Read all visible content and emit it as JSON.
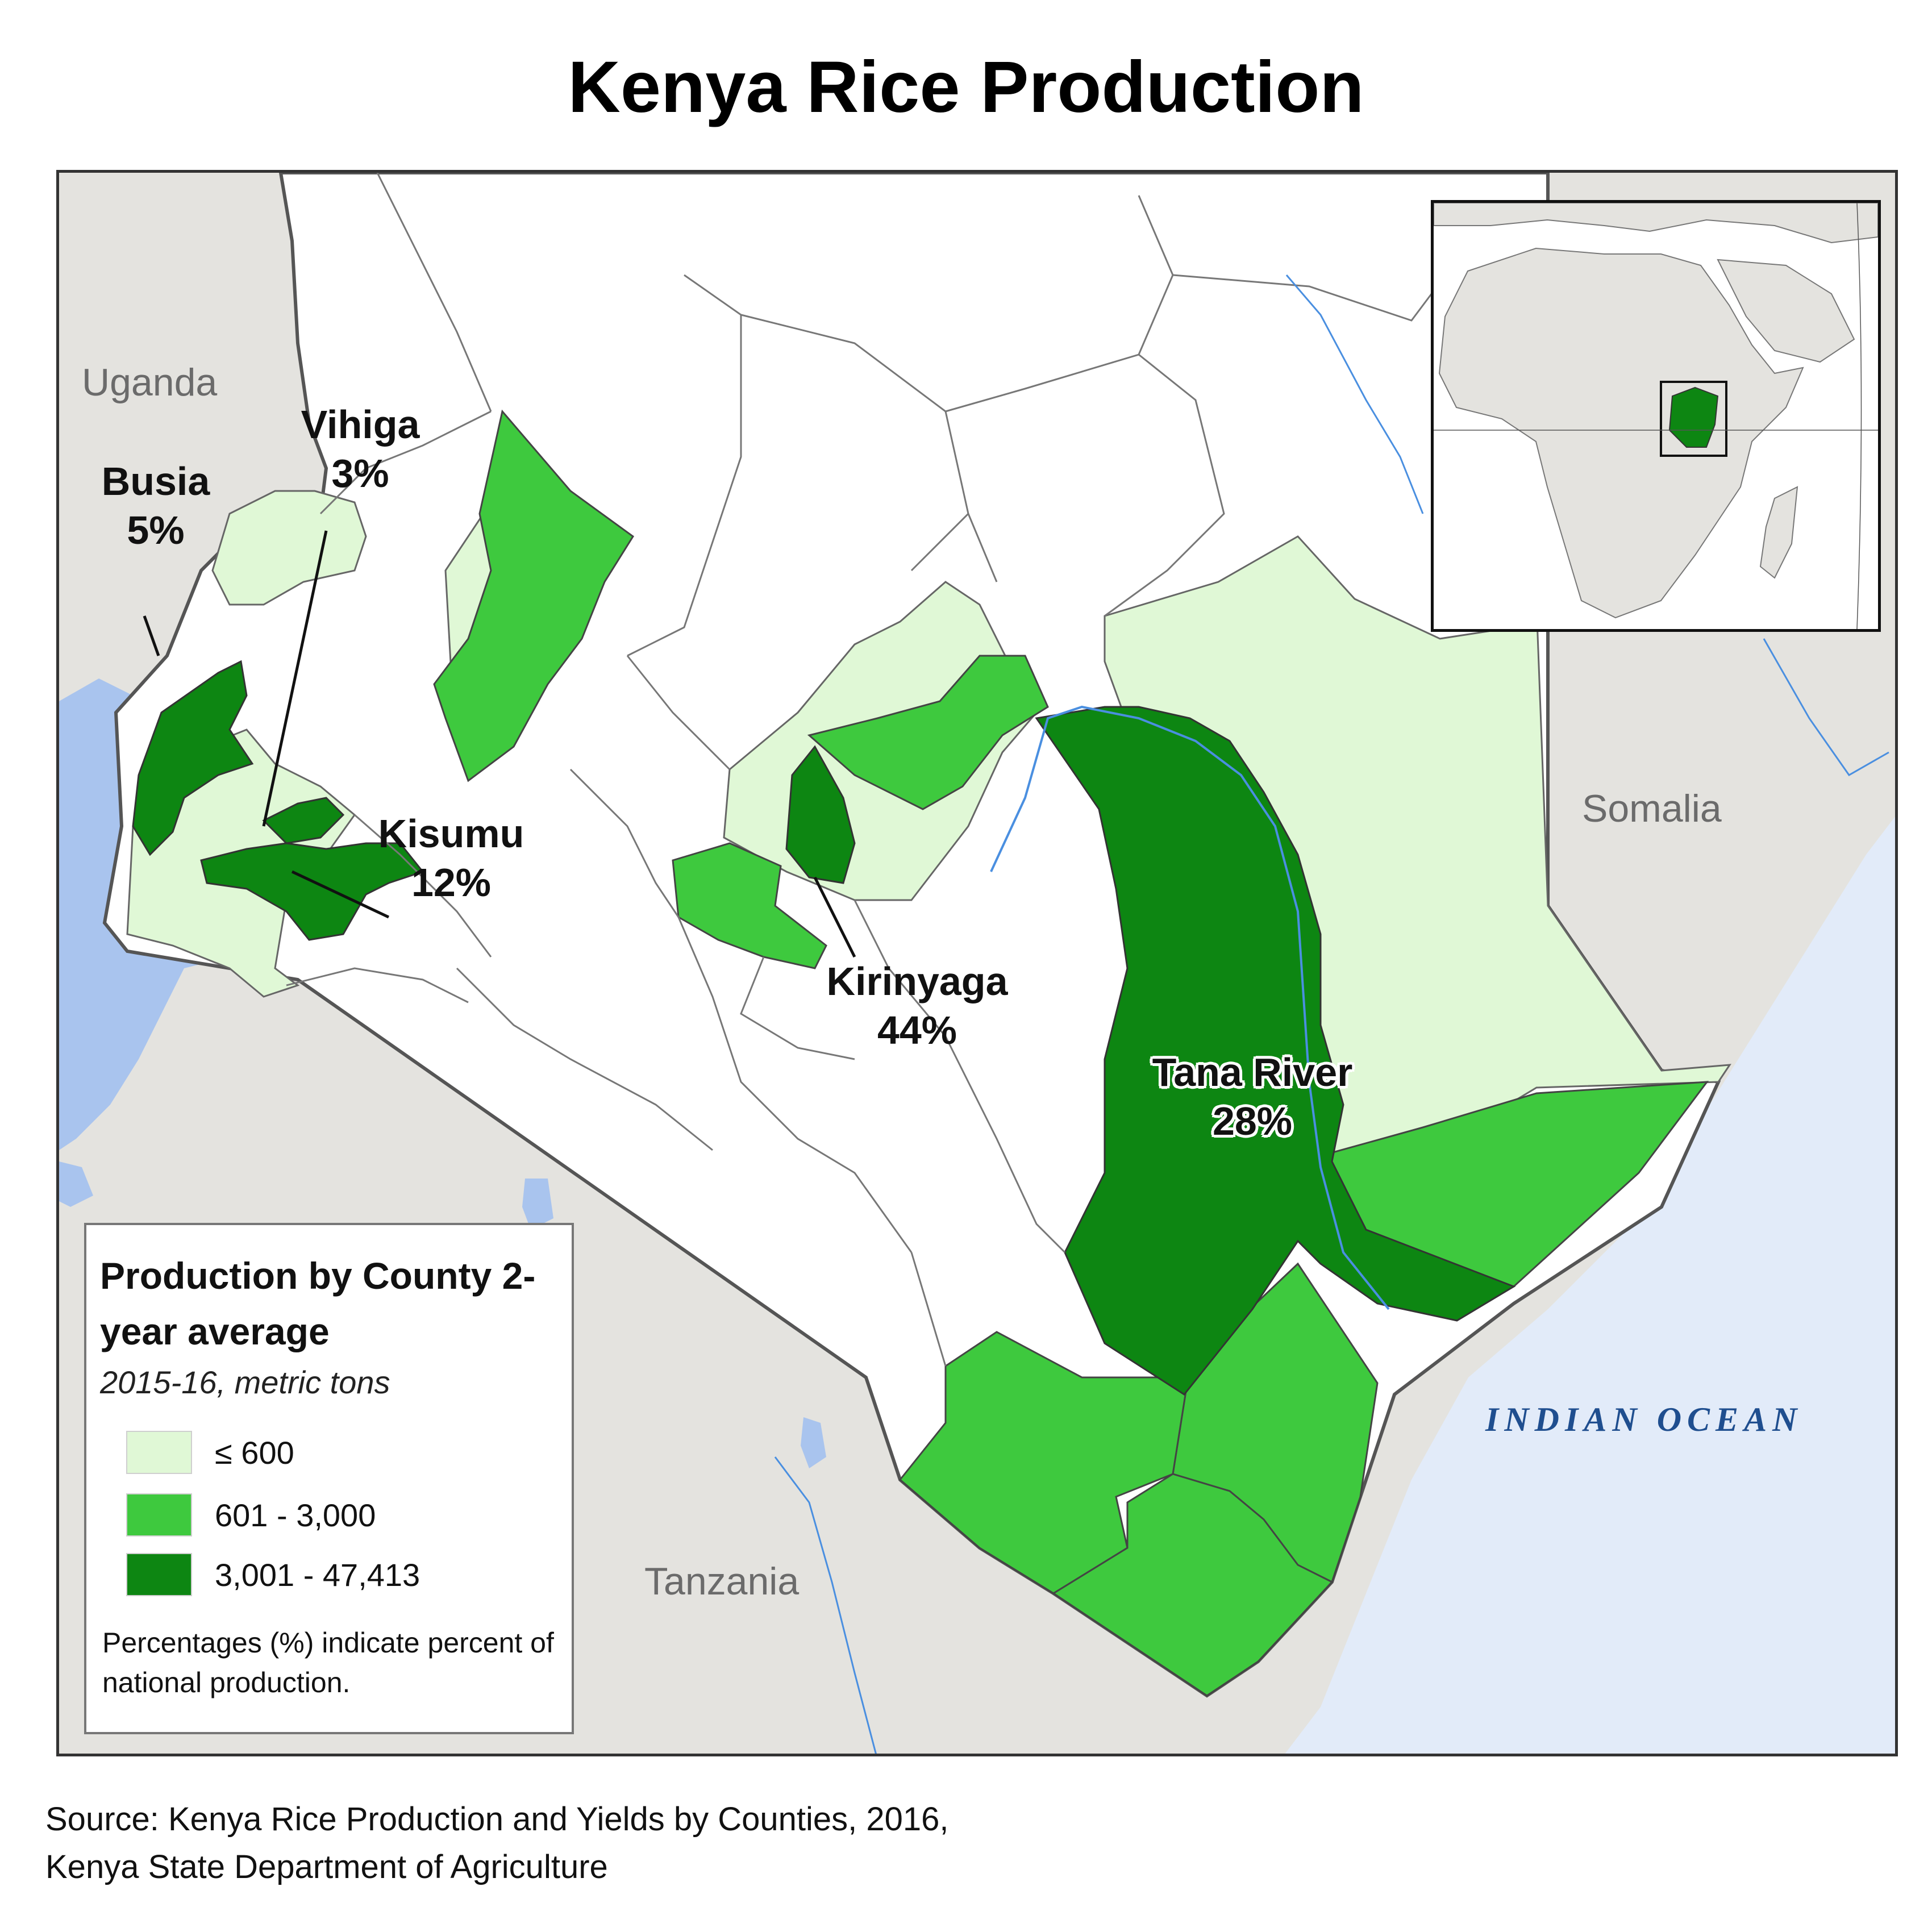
{
  "title": "Kenya Rice Production",
  "countries": {
    "uganda": "Uganda",
    "somalia": "Somalia",
    "tanzania": "Tanzania"
  },
  "ocean": "INDIAN OCEAN",
  "counties": {
    "busia": {
      "name": "Busia",
      "share": "5%"
    },
    "vihiga": {
      "name": "Vihiga",
      "share": "3%"
    },
    "kisumu": {
      "name": "Kisumu",
      "share": "12%"
    },
    "kirinyaga": {
      "name": "Kirinyaga",
      "share": "44%"
    },
    "tana_river": {
      "name": "Tana River",
      "share": "28%"
    }
  },
  "legend": {
    "title": "Production by County 2-year average",
    "subtitle": "2015-16, metric tons",
    "items": [
      {
        "label": "≤ 600",
        "color": "#e0f8d6"
      },
      {
        "label": "601 - 3,000",
        "color": "#3ec93e"
      },
      {
        "label": "3,001 - 47,413",
        "color": "#0d8612"
      }
    ],
    "note": "Percentages (%) indicate percent of national production."
  },
  "colors": {
    "water": "#a9c4ee",
    "ocean": "#e2ebf9",
    "land_neighbor": "#e4e3df",
    "kenya_other": "#ffffff",
    "border": "#555555"
  },
  "source": {
    "line1": "Source: Kenya Rice Production and Yields by Counties, 2016,",
    "line2": "Kenya State Department of Agriculture"
  }
}
